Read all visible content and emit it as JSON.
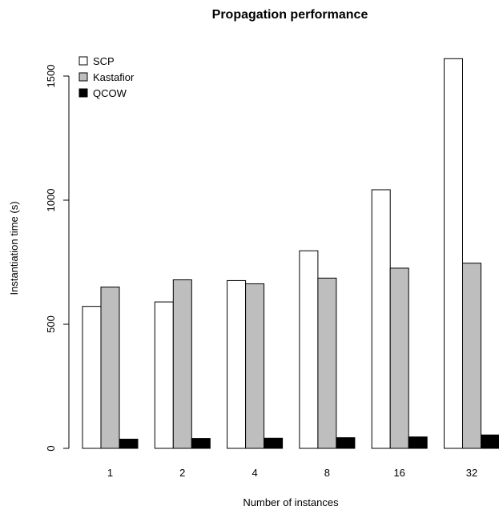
{
  "chart_data": {
    "type": "bar",
    "title": "Propagation performance",
    "xlabel": "Number of instances",
    "ylabel": "Instantiation time (s)",
    "categories": [
      "1",
      "2",
      "4",
      "8",
      "16",
      "32"
    ],
    "series": [
      {
        "name": "SCP",
        "color": "#ffffff",
        "values": [
          572,
          590,
          676,
          796,
          1042,
          1570
        ]
      },
      {
        "name": "Kastafior",
        "color": "#bebebe",
        "values": [
          650,
          679,
          663,
          686,
          726,
          746
        ]
      },
      {
        "name": "QCOW",
        "color": "#000000",
        "values": [
          37,
          40,
          41,
          43,
          46,
          54
        ]
      }
    ],
    "ylim": [
      0,
      1600
    ],
    "yticks": [
      0,
      500,
      1000,
      1500
    ],
    "grid": false,
    "legend": "top-left"
  }
}
